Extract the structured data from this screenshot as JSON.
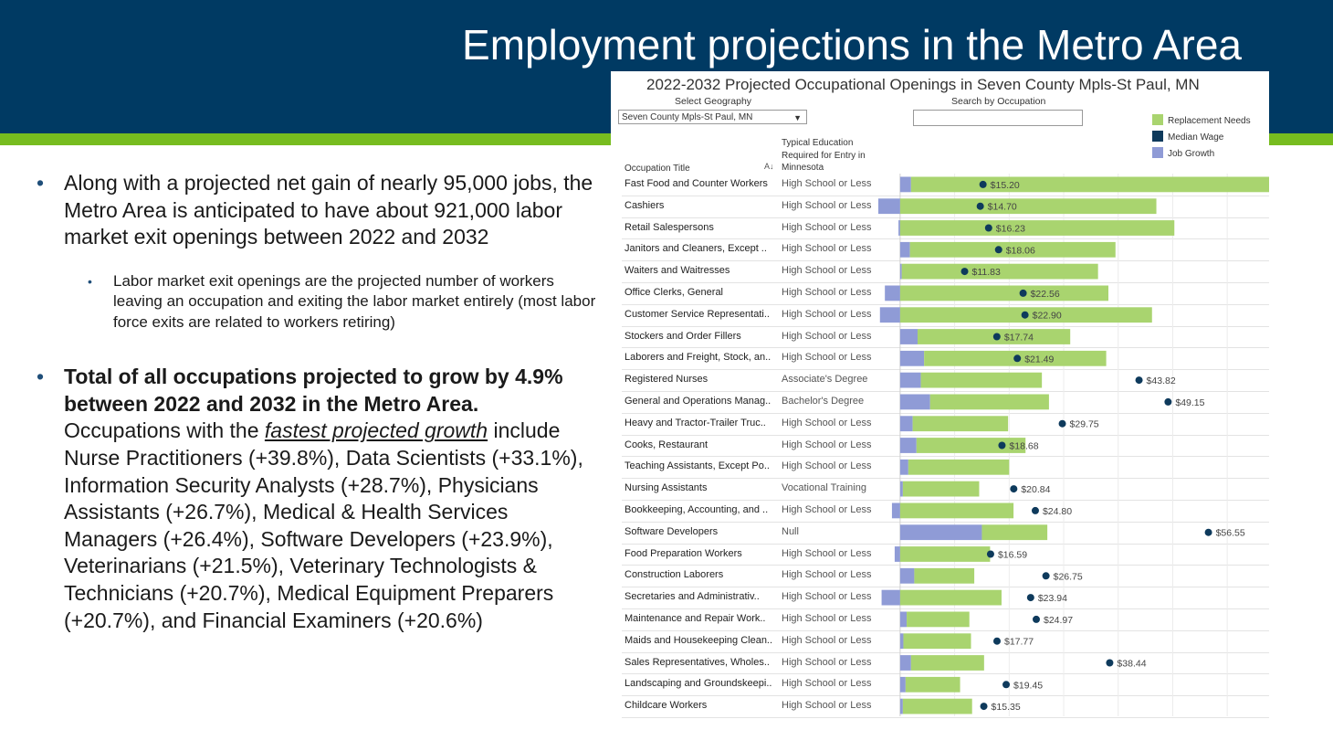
{
  "slide": {
    "title": "Employment projections in the Metro Area",
    "bullet1": "Along with a projected net gain of nearly 95,000 jobs, the Metro Area is anticipated to have about 921,000 labor market exit openings between 2022 and 2032",
    "sub_bullet": "Labor market exit openings are the projected number of workers leaving an occupation and exiting the labor market entirely (most labor force exits are related to workers retiring)",
    "bullet2_bold": "Total of all occupations projected to grow by 4.9% between 2022 and 2032 in the Metro Area.",
    "bullet2_pre": "Occupations with the",
    "bullet2_emph": "fastest projected growth",
    "bullet2_rest": "include Nurse Practitioners (+39.8%), Data Scientists (+33.1%), Information Security Analysts (+28.7%), Physicians Assistants (+26.7%), Medical & Health Services Managers (+26.4%), Software Developers (+23.9%), Veterinarians (+21.5%), Veterinary Technologists & Technicians (+20.7%), Medical Equipment Preparers (+20.7%), and Financial Examiners (+20.6%)"
  },
  "dashboard": {
    "title": "2022-2032  Projected Occupational Openings in Seven County Mpls-St Paul, MN",
    "geo_label": "Select Geography",
    "geo_value": "Seven County Mpls-St Paul, MN",
    "search_label": "Search by Occupation",
    "col_occupation": "Occupation Title",
    "col_education": "Typical Education Required for Entry in Minnesota",
    "legend": [
      {
        "label": "Replacement Needs",
        "color": "#a9d46f"
      },
      {
        "label": "Median Wage",
        "color": "#0e3a5c"
      },
      {
        "label": "Job Growth",
        "color": "#8f9bd6"
      }
    ]
  },
  "chart_data": {
    "type": "bar",
    "title": "2022-2032  Projected Occupational Openings in Seven County Mpls-St Paul, MN",
    "xlim": [
      -4,
      66
    ],
    "series_names": [
      "Job Growth",
      "Replacement Needs",
      "Median Wage"
    ],
    "rows": [
      {
        "occupation": "Fast Food and Counter Workers",
        "education": "High School or Less",
        "growth": 2.0,
        "replacement": 67.0,
        "wage": 15.2,
        "wage_label": "$15.20"
      },
      {
        "occupation": "Cashiers",
        "education": "High School or Less",
        "growth": -4.0,
        "replacement": 47.0,
        "wage": 14.7,
        "wage_label": "$14.70"
      },
      {
        "occupation": "Retail Salespersons",
        "education": "High School or Less",
        "growth": -0.3,
        "replacement": 50.3,
        "wage": 16.23,
        "wage_label": "$16.23"
      },
      {
        "occupation": "Janitors and Cleaners, Except ..",
        "education": "High School or Less",
        "growth": 1.8,
        "replacement": 37.7,
        "wage": 18.06,
        "wage_label": "$18.06"
      },
      {
        "occupation": "Waiters and Waitresses",
        "education": "High School or Less",
        "growth": 0.3,
        "replacement": 36.0,
        "wage": 11.83,
        "wage_label": "$11.83"
      },
      {
        "occupation": "Office Clerks, General",
        "education": "High School or Less",
        "growth": -2.8,
        "replacement": 38.2,
        "wage": 22.56,
        "wage_label": "$22.56"
      },
      {
        "occupation": "Customer Service Representati..",
        "education": "High School or Less",
        "growth": -3.7,
        "replacement": 46.2,
        "wage": 22.9,
        "wage_label": "$22.90"
      },
      {
        "occupation": "Stockers and Order Fillers",
        "education": "High School or Less",
        "growth": 3.2,
        "replacement": 28.0,
        "wage": 17.74,
        "wage_label": "$17.74"
      },
      {
        "occupation": "Laborers and Freight, Stock, an..",
        "education": "High School or Less",
        "growth": 4.4,
        "replacement": 33.4,
        "wage": 21.49,
        "wage_label": "$21.49"
      },
      {
        "occupation": "Registered Nurses",
        "education": "Associate's Degree",
        "growth": 3.8,
        "replacement": 22.2,
        "wage": 43.82,
        "wage_label": "$43.82"
      },
      {
        "occupation": "General and Operations Manag..",
        "education": "Bachelor's Degree",
        "growth": 5.5,
        "replacement": 21.8,
        "wage": 49.15,
        "wage_label": "$49.15"
      },
      {
        "occupation": "Heavy and Tractor-Trailer Truc..",
        "education": "High School or Less",
        "growth": 2.3,
        "replacement": 17.5,
        "wage": 29.75,
        "wage_label": "$29.75"
      },
      {
        "occupation": "Cooks, Restaurant",
        "education": "High School or Less",
        "growth": 3.0,
        "replacement": 20.0,
        "wage": 18.68,
        "wage_label": "$18.68"
      },
      {
        "occupation": "Teaching Assistants, Except Po..",
        "education": "High School or Less",
        "growth": 1.5,
        "replacement": 18.5,
        "wage": null,
        "wage_label": ""
      },
      {
        "occupation": "Nursing Assistants",
        "education": "Vocational Training",
        "growth": 0.5,
        "replacement": 14.0,
        "wage": 20.84,
        "wage_label": "$20.84"
      },
      {
        "occupation": "Bookkeeping, Accounting, and ..",
        "education": "High School or Less",
        "growth": -1.5,
        "replacement": 20.8,
        "wage": 24.8,
        "wage_label": "$24.80"
      },
      {
        "occupation": "Software Developers",
        "education": "Null",
        "growth": 15.0,
        "replacement": 12.0,
        "wage": 56.55,
        "wage_label": "$56.55"
      },
      {
        "occupation": "Food Preparation Workers",
        "education": "High School or Less",
        "growth": -1.0,
        "replacement": 16.5,
        "wage": 16.59,
        "wage_label": "$16.59"
      },
      {
        "occupation": "Construction Laborers",
        "education": "High School or Less",
        "growth": 2.6,
        "replacement": 11.0,
        "wage": 26.75,
        "wage_label": "$26.75"
      },
      {
        "occupation": "Secretaries and Administrativ..",
        "education": "High School or Less",
        "growth": -3.4,
        "replacement": 18.6,
        "wage": 23.94,
        "wage_label": "$23.94"
      },
      {
        "occupation": "Maintenance and Repair Work..",
        "education": "High School or Less",
        "growth": 1.2,
        "replacement": 11.5,
        "wage": 24.97,
        "wage_label": "$24.97"
      },
      {
        "occupation": "Maids and Housekeeping Clean..",
        "education": "High School or Less",
        "growth": 0.6,
        "replacement": 12.4,
        "wage": 17.77,
        "wage_label": "$17.77"
      },
      {
        "occupation": "Sales Representatives, Wholes..",
        "education": "High School or Less",
        "growth": 2.0,
        "replacement": 13.4,
        "wage": 38.44,
        "wage_label": "$38.44"
      },
      {
        "occupation": "Landscaping and Groundskeepi..",
        "education": "High School or Less",
        "growth": 1.0,
        "replacement": 10.0,
        "wage": 19.45,
        "wage_label": "$19.45"
      },
      {
        "occupation": "Childcare Workers",
        "education": "High School or Less",
        "growth": 0.5,
        "replacement": 12.7,
        "wage": 15.35,
        "wage_label": "$15.35"
      }
    ]
  }
}
